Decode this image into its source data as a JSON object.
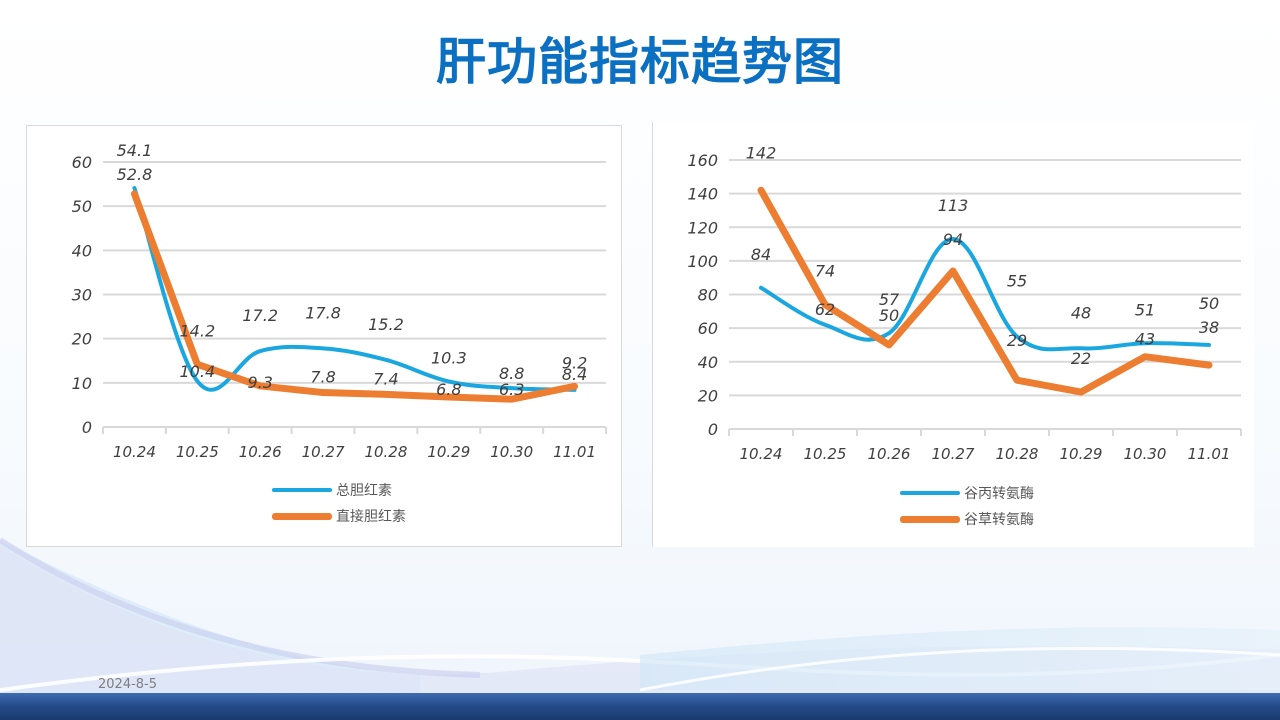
{
  "slide": {
    "title": "肝功能指标趋势图",
    "footer_date": "2024-8-5"
  },
  "colors": {
    "title": "#0b6fc2",
    "series_blue": "#1aa7e0",
    "series_orange": "#ed7d31",
    "grid": "#d9d9d9",
    "axis_text": "#404040",
    "bottom_bar": "#254d8c"
  },
  "chart_data": [
    {
      "type": "line",
      "title": "",
      "categories": [
        "10.24",
        "10.25",
        "10.26",
        "10.27",
        "10.28",
        "10.29",
        "10.30",
        "11.01"
      ],
      "series": [
        {
          "name": "总胆红素",
          "color": "#1aa7e0",
          "smooth": true,
          "values": [
            54.1,
            10.4,
            17.2,
            17.8,
            15.2,
            10.3,
            8.8,
            8.4
          ]
        },
        {
          "name": "直接胆红素",
          "color": "#ed7d31",
          "smooth": false,
          "values": [
            52.8,
            14.2,
            9.3,
            7.8,
            7.4,
            6.8,
            6.3,
            9.2
          ]
        }
      ],
      "xlabel": "",
      "ylabel": "",
      "ylim": [
        0,
        60
      ],
      "yticks": [
        0,
        10,
        20,
        30,
        40,
        50,
        60
      ],
      "grid": true,
      "legend_position": "bottom"
    },
    {
      "type": "line",
      "title": "",
      "categories": [
        "10.24",
        "10.25",
        "10.26",
        "10.27",
        "10.28",
        "10.29",
        "10.30",
        "11.01"
      ],
      "series": [
        {
          "name": "谷丙转氨酶",
          "color": "#1aa7e0",
          "smooth": true,
          "values": [
            84,
            62,
            57,
            113,
            55,
            48,
            51,
            50
          ]
        },
        {
          "name": "谷草转氨酶",
          "color": "#ed7d31",
          "smooth": false,
          "values": [
            142,
            74,
            50,
            94,
            29,
            22,
            43,
            38
          ]
        }
      ],
      "xlabel": "",
      "ylabel": "",
      "ylim": [
        0,
        160
      ],
      "yticks": [
        0,
        20,
        40,
        60,
        80,
        100,
        120,
        140,
        160
      ],
      "grid": true,
      "legend_position": "bottom"
    }
  ],
  "legends": {
    "left": [
      "总胆红素",
      "直接胆红素"
    ],
    "right": [
      "谷丙转氨酶",
      "谷草转氨酶"
    ]
  }
}
